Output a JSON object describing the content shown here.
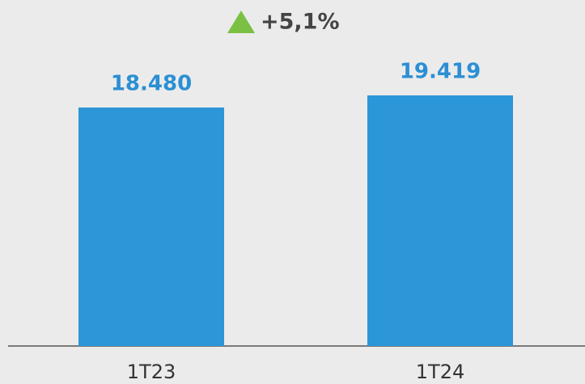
{
  "chart_data": {
    "type": "bar",
    "annotation": "+5,1%",
    "categories": [
      "1T23",
      "1T24"
    ],
    "values": [
      18480,
      19419
    ],
    "value_labels": [
      "18.480",
      "19.419"
    ],
    "color": "#2b96d8"
  }
}
